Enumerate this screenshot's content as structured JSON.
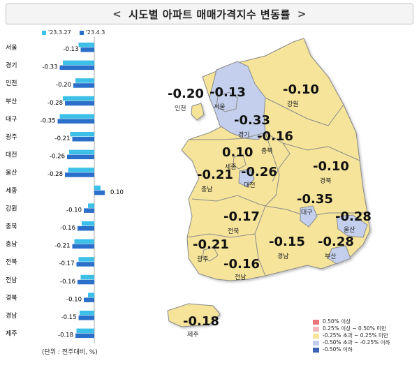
{
  "title": "시도별 아파트 매매가격지수 변동률",
  "title_chevron_left": "<",
  "title_chevron_right": ">",
  "legend_series": [
    {
      "label": "'23.3.27",
      "color": "#3cc0e8"
    },
    {
      "label": "'23.4.3",
      "color": "#2a6fc9"
    }
  ],
  "unit_note": "(단위 : 전주대비, %)",
  "chart_data": {
    "type": "bar",
    "orientation": "horizontal",
    "categories": [
      "서울",
      "경기",
      "인천",
      "부산",
      "대구",
      "광주",
      "대전",
      "울산",
      "세종",
      "강원",
      "충북",
      "충남",
      "전북",
      "전남",
      "경북",
      "경남",
      "제주"
    ],
    "series": [
      {
        "name": "'23.3.27",
        "values": [
          -0.15,
          -0.3,
          -0.18,
          -0.3,
          -0.33,
          -0.23,
          -0.24,
          -0.25,
          0.06,
          -0.06,
          -0.12,
          -0.19,
          -0.15,
          -0.13,
          -0.06,
          -0.14,
          -0.17
        ]
      },
      {
        "name": "'23.4.3",
        "values": [
          -0.13,
          -0.33,
          -0.2,
          -0.28,
          -0.35,
          -0.21,
          -0.26,
          -0.28,
          0.1,
          -0.1,
          -0.16,
          -0.21,
          -0.17,
          -0.16,
          -0.1,
          -0.15,
          -0.18
        ]
      }
    ],
    "data_labels": [
      "-0.13",
      "-0.33",
      "-0.20",
      "-0.28",
      "-0.35",
      "-0.21",
      "-0.26",
      "-0.28",
      "0.10",
      "-0.10",
      "-0.16",
      "-0.21",
      "-0.17",
      "-0.16",
      "-0.10",
      "-0.15",
      "-0.18"
    ],
    "xlim": [
      -0.4,
      0.15
    ]
  },
  "map": {
    "regions": [
      {
        "name": "인천",
        "value": "-0.20"
      },
      {
        "name": "서울",
        "value": "-0.13"
      },
      {
        "name": "강원",
        "value": "-0.10"
      },
      {
        "name": "경기",
        "value": "-0.33"
      },
      {
        "name": "충북",
        "value": "-0.16"
      },
      {
        "name": "세종",
        "value": "0.10"
      },
      {
        "name": "대전",
        "value": "-0.26"
      },
      {
        "name": "충남",
        "value": "-0.21"
      },
      {
        "name": "경북",
        "value": "-0.10"
      },
      {
        "name": "대구",
        "value": "-0.35"
      },
      {
        "name": "전북",
        "value": "-0.17"
      },
      {
        "name": "울산",
        "value": "-0.28"
      },
      {
        "name": "광주",
        "value": "-0.21"
      },
      {
        "name": "경남",
        "value": "-0.15"
      },
      {
        "name": "부산",
        "value": "-0.28"
      },
      {
        "name": "전남",
        "value": "-0.16"
      },
      {
        "name": "제주",
        "value": "-0.18"
      }
    ],
    "legend": [
      {
        "label": "0.50% 이상",
        "color": "#e8747c"
      },
      {
        "label": "0.25% 이상 ~ 0.50% 미만",
        "color": "#f3b9bd"
      },
      {
        "label": "-0.25% 초과 ~ 0.25% 미만",
        "color": "#f6e49a"
      },
      {
        "label": "-0.50% 초과 ~ -0.25% 이하",
        "color": "#c3cfec"
      },
      {
        "label": "-0.50% 이하",
        "color": "#3a62b5"
      }
    ],
    "colors": {
      "mid": "#f6e49a",
      "low": "#c3cfec",
      "border": "#8a8a8a"
    }
  }
}
